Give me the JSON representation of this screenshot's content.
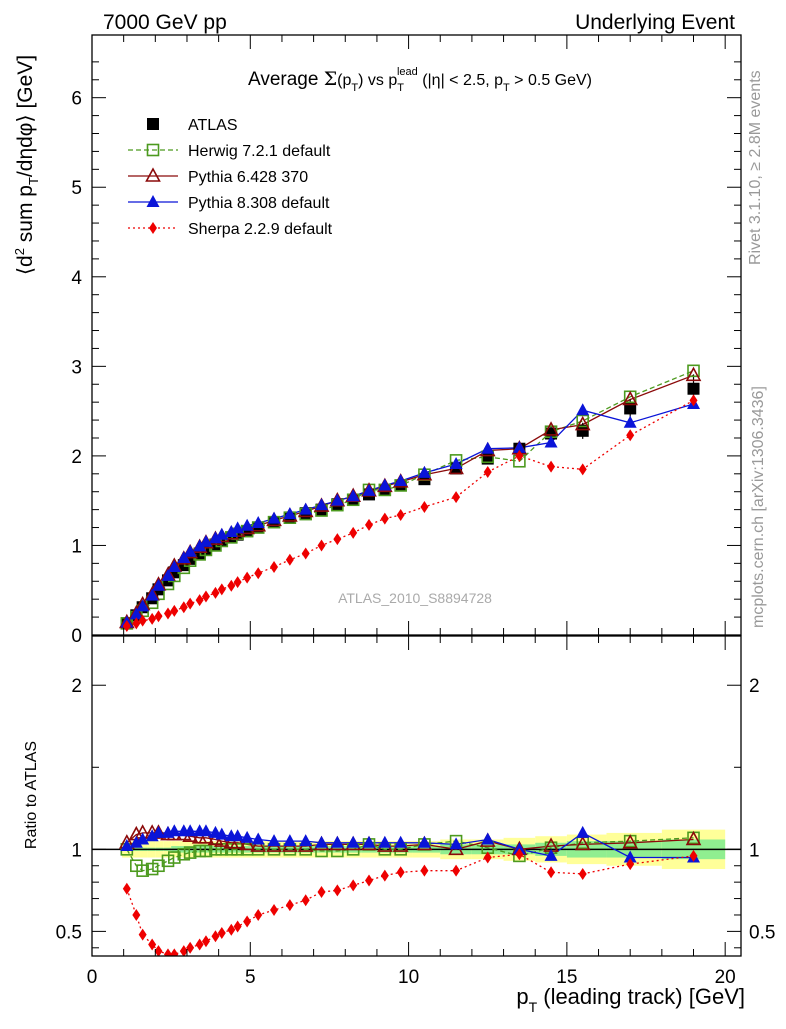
{
  "header": {
    "left": "7000 GeV pp",
    "right": "Underlying Event"
  },
  "side": {
    "rivet": "Rivet 3.1.10, ≥ 2.8M events",
    "mcplots": "mcplots.cern.ch [arXiv:1306.3436]"
  },
  "watermark": "ATLAS_2010_S8894728",
  "colors": {
    "atlas": "#000000",
    "herwig": "#4c9a1e",
    "pythia6": "#8b0a0a",
    "pythia8": "#0a14d8",
    "sherpa": "#ee0000",
    "band_inner": "#90ee90",
    "band_outer": "#ffff99"
  },
  "chart_data": {
    "type": "scatter",
    "title": "Average Σ(pT) vs pT lead (|η| < 2.5, pT > 0.5 GeV)",
    "xlabel": "pT (leading track) [GeV]",
    "ylabel_main": "⟨d² sum pT/dηdφ⟩ [GeV]",
    "ylabel_ratio": "Ratio to ATLAS",
    "xlim": [
      0,
      20.5
    ],
    "ylim_main": [
      0,
      6.7
    ],
    "ylim_ratio": [
      0.35,
      2.3
    ],
    "x_ticks": [
      "0",
      "5",
      "10",
      "15",
      "20"
    ],
    "y_ticks_main": [
      "0",
      "1",
      "2",
      "3",
      "4",
      "5",
      "6"
    ],
    "y_ticks_ratio": [
      "0.5",
      "1",
      "2"
    ],
    "legend": [
      "ATLAS",
      "Herwig 7.2.1 default",
      "Pythia 6.428 370",
      "Pythia 8.308 default",
      "Sherpa 2.2.9 default"
    ],
    "x": [
      1.1,
      1.4,
      1.6,
      1.9,
      2.1,
      2.4,
      2.6,
      2.9,
      3.1,
      3.4,
      3.6,
      3.9,
      4.1,
      4.4,
      4.6,
      4.9,
      5.25,
      5.75,
      6.25,
      6.75,
      7.25,
      7.75,
      8.25,
      8.75,
      9.25,
      9.75,
      10.5,
      11.5,
      12.5,
      13.5,
      14.5,
      15.5,
      17,
      19
    ],
    "atlas": [
      0.13,
      0.22,
      0.31,
      0.41,
      0.51,
      0.61,
      0.7,
      0.78,
      0.85,
      0.91,
      0.96,
      1.01,
      1.05,
      1.09,
      1.12,
      1.16,
      1.2,
      1.26,
      1.31,
      1.36,
      1.4,
      1.46,
      1.51,
      1.57,
      1.62,
      1.67,
      1.74,
      1.86,
      1.97,
      2.08,
      2.25,
      2.28,
      2.53,
      2.75
    ],
    "atlas_err": [
      0.01,
      0.01,
      0.01,
      0.01,
      0.01,
      0.01,
      0.02,
      0.02,
      0.02,
      0.02,
      0.02,
      0.02,
      0.02,
      0.02,
      0.02,
      0.02,
      0.02,
      0.02,
      0.03,
      0.03,
      0.03,
      0.03,
      0.03,
      0.04,
      0.04,
      0.04,
      0.04,
      0.05,
      0.05,
      0.06,
      0.08,
      0.09,
      0.1,
      0.16
    ],
    "series": [
      {
        "name": "Herwig 7.2.1 default",
        "marker": "square-open",
        "line": "dashed",
        "values": [
          0.13,
          0.2,
          0.27,
          0.36,
          0.46,
          0.57,
          0.66,
          0.75,
          0.83,
          0.9,
          0.95,
          1.0,
          1.05,
          1.09,
          1.13,
          1.16,
          1.2,
          1.26,
          1.31,
          1.35,
          1.39,
          1.45,
          1.51,
          1.62,
          1.62,
          1.67,
          1.79,
          1.95,
          1.99,
          1.94,
          2.27,
          2.39,
          2.66,
          2.95
        ],
        "ratio": [
          1.0,
          0.9,
          0.87,
          0.88,
          0.9,
          0.93,
          0.95,
          0.97,
          0.98,
          0.99,
          0.99,
          1.0,
          1.0,
          1.0,
          1.0,
          1.0,
          1.0,
          1.0,
          1.0,
          1.0,
          0.99,
          0.99,
          1.0,
          1.03,
          1.0,
          1.0,
          1.03,
          1.05,
          1.01,
          0.96,
          1.01,
          1.04,
          1.05,
          1.07
        ]
      },
      {
        "name": "Pythia 6.428 370",
        "marker": "triangle-open",
        "line": "solid",
        "values": [
          0.14,
          0.24,
          0.34,
          0.45,
          0.56,
          0.67,
          0.77,
          0.85,
          0.92,
          0.98,
          1.03,
          1.07,
          1.1,
          1.13,
          1.16,
          1.19,
          1.22,
          1.28,
          1.33,
          1.38,
          1.44,
          1.5,
          1.55,
          1.61,
          1.66,
          1.71,
          1.79,
          1.86,
          2.06,
          2.08,
          2.29,
          2.35,
          2.63,
          2.9
        ],
        "ratio": [
          1.04,
          1.09,
          1.1,
          1.1,
          1.1,
          1.09,
          1.09,
          1.09,
          1.08,
          1.07,
          1.07,
          1.06,
          1.05,
          1.04,
          1.04,
          1.03,
          1.02,
          1.02,
          1.02,
          1.02,
          1.03,
          1.03,
          1.03,
          1.03,
          1.02,
          1.02,
          1.03,
          1.0,
          1.05,
          1.0,
          1.02,
          1.03,
          1.04,
          1.06
        ]
      },
      {
        "name": "Pythia 8.308 default",
        "marker": "triangle-filled",
        "line": "solid",
        "values": [
          0.14,
          0.23,
          0.32,
          0.44,
          0.55,
          0.66,
          0.76,
          0.86,
          0.93,
          0.99,
          1.04,
          1.08,
          1.12,
          1.15,
          1.19,
          1.22,
          1.25,
          1.3,
          1.35,
          1.4,
          1.45,
          1.5,
          1.55,
          1.61,
          1.67,
          1.72,
          1.81,
          1.91,
          2.08,
          2.09,
          2.15,
          2.51,
          2.37,
          2.58
        ],
        "ratio": [
          1.02,
          1.04,
          1.06,
          1.08,
          1.1,
          1.1,
          1.11,
          1.11,
          1.11,
          1.11,
          1.11,
          1.1,
          1.09,
          1.08,
          1.08,
          1.07,
          1.06,
          1.05,
          1.05,
          1.05,
          1.04,
          1.04,
          1.04,
          1.04,
          1.04,
          1.04,
          1.04,
          1.03,
          1.06,
          1.0,
          0.96,
          1.1,
          0.95,
          0.95
        ]
      },
      {
        "name": "Sherpa 2.2.9 default",
        "marker": "diamond-filled",
        "line": "dotted",
        "values": [
          0.1,
          0.13,
          0.16,
          0.18,
          0.21,
          0.24,
          0.27,
          0.31,
          0.35,
          0.39,
          0.43,
          0.47,
          0.51,
          0.55,
          0.59,
          0.64,
          0.69,
          0.76,
          0.84,
          0.91,
          1.0,
          1.07,
          1.14,
          1.23,
          1.3,
          1.34,
          1.43,
          1.54,
          1.82,
          2.0,
          1.88,
          1.85,
          2.23,
          2.62
        ],
        "ratio": [
          0.76,
          0.6,
          0.48,
          0.42,
          0.38,
          0.36,
          0.36,
          0.38,
          0.4,
          0.42,
          0.44,
          0.47,
          0.49,
          0.51,
          0.53,
          0.56,
          0.6,
          0.63,
          0.66,
          0.69,
          0.74,
          0.75,
          0.78,
          0.81,
          0.84,
          0.86,
          0.87,
          0.87,
          0.95,
          0.97,
          0.86,
          0.85,
          0.91,
          0.96
        ]
      }
    ],
    "ratio_band_inner": [
      0.01,
      0.01,
      0.01,
      0.01,
      0.01,
      0.01,
      0.02,
      0.02,
      0.02,
      0.02,
      0.02,
      0.02,
      0.02,
      0.02,
      0.02,
      0.02,
      0.02,
      0.02,
      0.02,
      0.02,
      0.02,
      0.02,
      0.02,
      0.02,
      0.02,
      0.02,
      0.02,
      0.03,
      0.03,
      0.03,
      0.04,
      0.05,
      0.05,
      0.06
    ],
    "ratio_band_outer": [
      0.05,
      0.05,
      0.05,
      0.05,
      0.05,
      0.05,
      0.05,
      0.05,
      0.05,
      0.05,
      0.05,
      0.05,
      0.05,
      0.05,
      0.05,
      0.05,
      0.05,
      0.05,
      0.05,
      0.05,
      0.05,
      0.05,
      0.05,
      0.05,
      0.05,
      0.05,
      0.05,
      0.06,
      0.06,
      0.07,
      0.08,
      0.09,
      0.1,
      0.12
    ]
  }
}
